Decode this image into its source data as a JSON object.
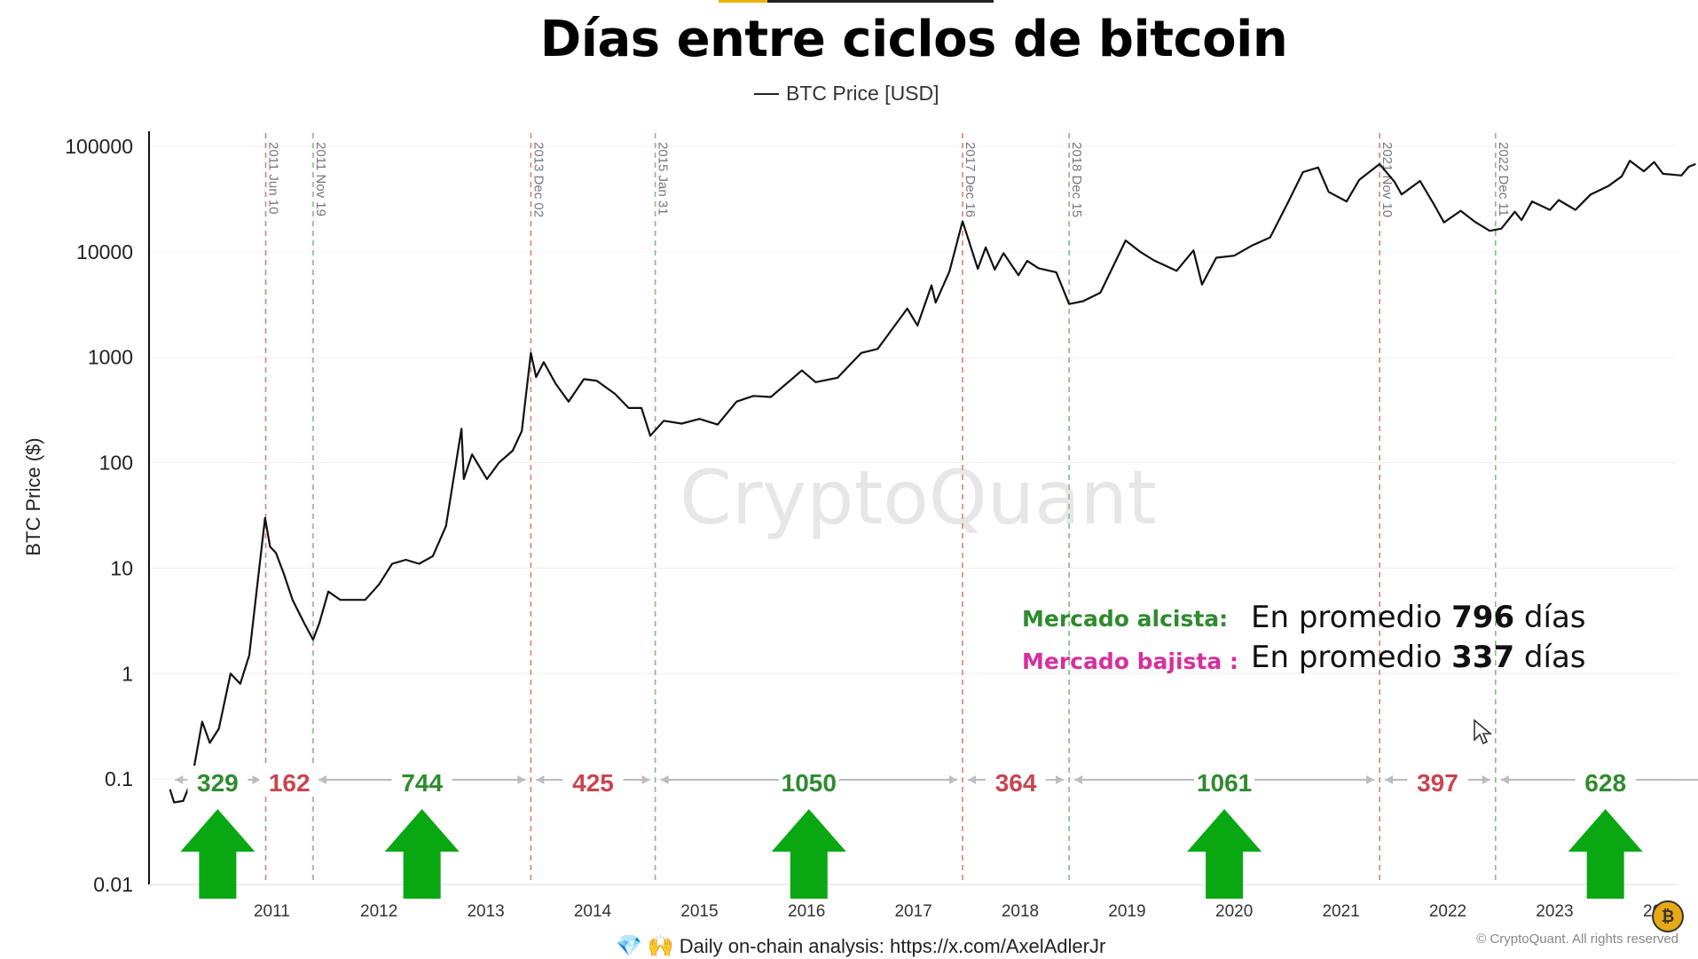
{
  "title": "Días entre ciclos de bitcoin",
  "legend": {
    "series_label": "BTC Price [USD]"
  },
  "info": {
    "bull_label": "Mercado alcista:",
    "bear_label": "Mercado bajista :",
    "bull_prefix": "En promedio ",
    "bull_days": "796",
    "bull_suffix": " días",
    "bear_prefix": "En promedio ",
    "bear_days": "337",
    "bear_suffix": " días",
    "bull_color": "#2e8b2e",
    "bear_color": "#d62fa0"
  },
  "footer": {
    "text": "Daily on-chain analysis: https://x.com/AxelAdlerJr",
    "icons": [
      "diamond-icon",
      "raised-hands-icon"
    ]
  },
  "copyright": "© CryptoQuant. All rights reserved",
  "watermark": "CryptoQuant",
  "chart_data": {
    "type": "line",
    "ylabel": "BTC Price ($)",
    "y_scale": "log",
    "ylim": [
      0.01,
      100000
    ],
    "y_ticks": [
      "0.01",
      "0.1",
      "1",
      "10",
      "100",
      "1000",
      "10000",
      "100000"
    ],
    "x_ticks": [
      "2011",
      "2012",
      "2013",
      "2014",
      "2015",
      "2016",
      "2017",
      "2018",
      "2019",
      "2020",
      "2021",
      "2022",
      "2023",
      "2024"
    ],
    "xlim": [
      "2010-07-01",
      "2024-12-31"
    ],
    "cycle_lines": [
      {
        "date": "2011-06-10",
        "label": "2011 Jun 10",
        "color": "#d98080"
      },
      {
        "date": "2011-11-19",
        "label": "2011 Nov 19",
        "color": "#7ec07e"
      },
      {
        "date": "2013-12-02",
        "label": "2013 Dec 02",
        "color": "#d98080"
      },
      {
        "date": "2015-01-31",
        "label": "2015 Jan 31",
        "color": "#7ec07e"
      },
      {
        "date": "2017-12-16",
        "label": "2017 Dec 16",
        "color": "#d98080"
      },
      {
        "date": "2018-12-15",
        "label": "2018 Dec 15",
        "color": "#7ec07e"
      },
      {
        "date": "2021-11-10",
        "label": "2021 Nov 10",
        "color": "#d98080"
      },
      {
        "date": "2022-12-11",
        "label": "2022 Dec 11",
        "color": "#7ec07e"
      }
    ],
    "cycle_durations": [
      {
        "days": "329",
        "kind": "bull",
        "from": "2010-07-17",
        "to": "2011-06-10"
      },
      {
        "days": "162",
        "kind": "bear",
        "from": "2011-06-10",
        "to": "2011-11-19"
      },
      {
        "days": "744",
        "kind": "bull",
        "from": "2011-11-19",
        "to": "2013-12-02"
      },
      {
        "days": "425",
        "kind": "bear",
        "from": "2013-12-02",
        "to": "2015-01-31"
      },
      {
        "days": "1050",
        "kind": "bull",
        "from": "2015-01-31",
        "to": "2017-12-16"
      },
      {
        "days": "364",
        "kind": "bear",
        "from": "2017-12-16",
        "to": "2018-12-15"
      },
      {
        "days": "1061",
        "kind": "bull",
        "from": "2018-12-15",
        "to": "2021-11-10"
      },
      {
        "days": "397",
        "kind": "bear",
        "from": "2021-11-10",
        "to": "2022-12-11"
      },
      {
        "days": "628",
        "kind": "bull",
        "from": "2022-12-11",
        "to": "2024-12-31"
      }
    ],
    "series": [
      {
        "values": [
          [
            "2010-07-18",
            0.08
          ],
          [
            "2010-08-01",
            0.06
          ],
          [
            "2010-09-01",
            0.062
          ],
          [
            "2010-10-01",
            0.1
          ],
          [
            "2010-11-05",
            0.35
          ],
          [
            "2010-12-01",
            0.22
          ],
          [
            "2011-01-01",
            0.3
          ],
          [
            "2011-02-10",
            1.0
          ],
          [
            "2011-03-15",
            0.8
          ],
          [
            "2011-04-15",
            1.5
          ],
          [
            "2011-05-15",
            8
          ],
          [
            "2011-06-08",
            30
          ],
          [
            "2011-06-25",
            16
          ],
          [
            "2011-07-15",
            14
          ],
          [
            "2011-08-10",
            9
          ],
          [
            "2011-09-10",
            5
          ],
          [
            "2011-10-20",
            3
          ],
          [
            "2011-11-19",
            2.1
          ],
          [
            "2011-12-10",
            3
          ],
          [
            "2012-01-10",
            6
          ],
          [
            "2012-02-20",
            5
          ],
          [
            "2012-04-01",
            5
          ],
          [
            "2012-05-15",
            5
          ],
          [
            "2012-07-01",
            7
          ],
          [
            "2012-08-15",
            11
          ],
          [
            "2012-10-01",
            12
          ],
          [
            "2012-11-15",
            11
          ],
          [
            "2013-01-01",
            13
          ],
          [
            "2013-02-15",
            25
          ],
          [
            "2013-04-09",
            210
          ],
          [
            "2013-04-17",
            70
          ],
          [
            "2013-05-15",
            120
          ],
          [
            "2013-07-05",
            70
          ],
          [
            "2013-08-15",
            100
          ],
          [
            "2013-10-01",
            130
          ],
          [
            "2013-11-01",
            200
          ],
          [
            "2013-12-02",
            1100
          ],
          [
            "2013-12-20",
            650
          ],
          [
            "2014-01-15",
            900
          ],
          [
            "2014-02-25",
            560
          ],
          [
            "2014-04-10",
            380
          ],
          [
            "2014-06-01",
            620
          ],
          [
            "2014-07-15",
            600
          ],
          [
            "2014-09-15",
            450
          ],
          [
            "2014-11-01",
            330
          ],
          [
            "2014-12-15",
            330
          ],
          [
            "2015-01-14",
            180
          ],
          [
            "2015-03-01",
            250
          ],
          [
            "2015-05-01",
            235
          ],
          [
            "2015-07-01",
            260
          ],
          [
            "2015-09-01",
            230
          ],
          [
            "2015-11-05",
            380
          ],
          [
            "2016-01-01",
            430
          ],
          [
            "2016-03-01",
            420
          ],
          [
            "2016-06-15",
            750
          ],
          [
            "2016-08-01",
            580
          ],
          [
            "2016-10-15",
            640
          ],
          [
            "2017-01-04",
            1100
          ],
          [
            "2017-03-01",
            1200
          ],
          [
            "2017-06-10",
            2900
          ],
          [
            "2017-07-15",
            2000
          ],
          [
            "2017-09-01",
            4800
          ],
          [
            "2017-09-15",
            3300
          ],
          [
            "2017-11-01",
            6500
          ],
          [
            "2017-12-16",
            19500
          ],
          [
            "2018-02-06",
            6900
          ],
          [
            "2018-03-05",
            11000
          ],
          [
            "2018-04-05",
            6800
          ],
          [
            "2018-05-05",
            9700
          ],
          [
            "2018-06-25",
            6000
          ],
          [
            "2018-07-25",
            8200
          ],
          [
            "2018-09-01",
            7000
          ],
          [
            "2018-11-01",
            6400
          ],
          [
            "2018-12-15",
            3200
          ],
          [
            "2019-02-01",
            3400
          ],
          [
            "2019-04-01",
            4100
          ],
          [
            "2019-06-26",
            12800
          ],
          [
            "2019-08-15",
            10000
          ],
          [
            "2019-10-01",
            8300
          ],
          [
            "2019-12-17",
            6600
          ],
          [
            "2020-02-13",
            10300
          ],
          [
            "2020-03-13",
            4900
          ],
          [
            "2020-05-01",
            8800
          ],
          [
            "2020-07-01",
            9200
          ],
          [
            "2020-09-01",
            11500
          ],
          [
            "2020-11-01",
            13700
          ],
          [
            "2020-12-31",
            29000
          ],
          [
            "2021-02-21",
            57000
          ],
          [
            "2021-04-14",
            63000
          ],
          [
            "2021-05-20",
            37000
          ],
          [
            "2021-07-20",
            30000
          ],
          [
            "2021-09-01",
            48000
          ],
          [
            "2021-11-10",
            68000
          ],
          [
            "2021-12-31",
            46000
          ],
          [
            "2022-01-24",
            35000
          ],
          [
            "2022-03-28",
            47000
          ],
          [
            "2022-05-12",
            29000
          ],
          [
            "2022-06-18",
            19000
          ],
          [
            "2022-08-14",
            24500
          ],
          [
            "2022-10-01",
            19300
          ],
          [
            "2022-11-21",
            15800
          ],
          [
            "2022-12-31",
            16600
          ],
          [
            "2023-02-15",
            24000
          ],
          [
            "2023-03-10",
            20000
          ],
          [
            "2023-04-15",
            30000
          ],
          [
            "2023-06-15",
            25000
          ],
          [
            "2023-07-15",
            31000
          ],
          [
            "2023-09-10",
            25000
          ],
          [
            "2023-11-01",
            35000
          ],
          [
            "2023-12-31",
            42000
          ],
          [
            "2024-02-15",
            52000
          ],
          [
            "2024-03-14",
            73000
          ],
          [
            "2024-05-01",
            58000
          ],
          [
            "2024-06-05",
            71000
          ],
          [
            "2024-07-05",
            55000
          ],
          [
            "2024-08-05",
            54000
          ],
          [
            "2024-09-06",
            53000
          ],
          [
            "2024-10-01",
            64000
          ],
          [
            "2024-10-25",
            68000
          ]
        ]
      }
    ]
  }
}
